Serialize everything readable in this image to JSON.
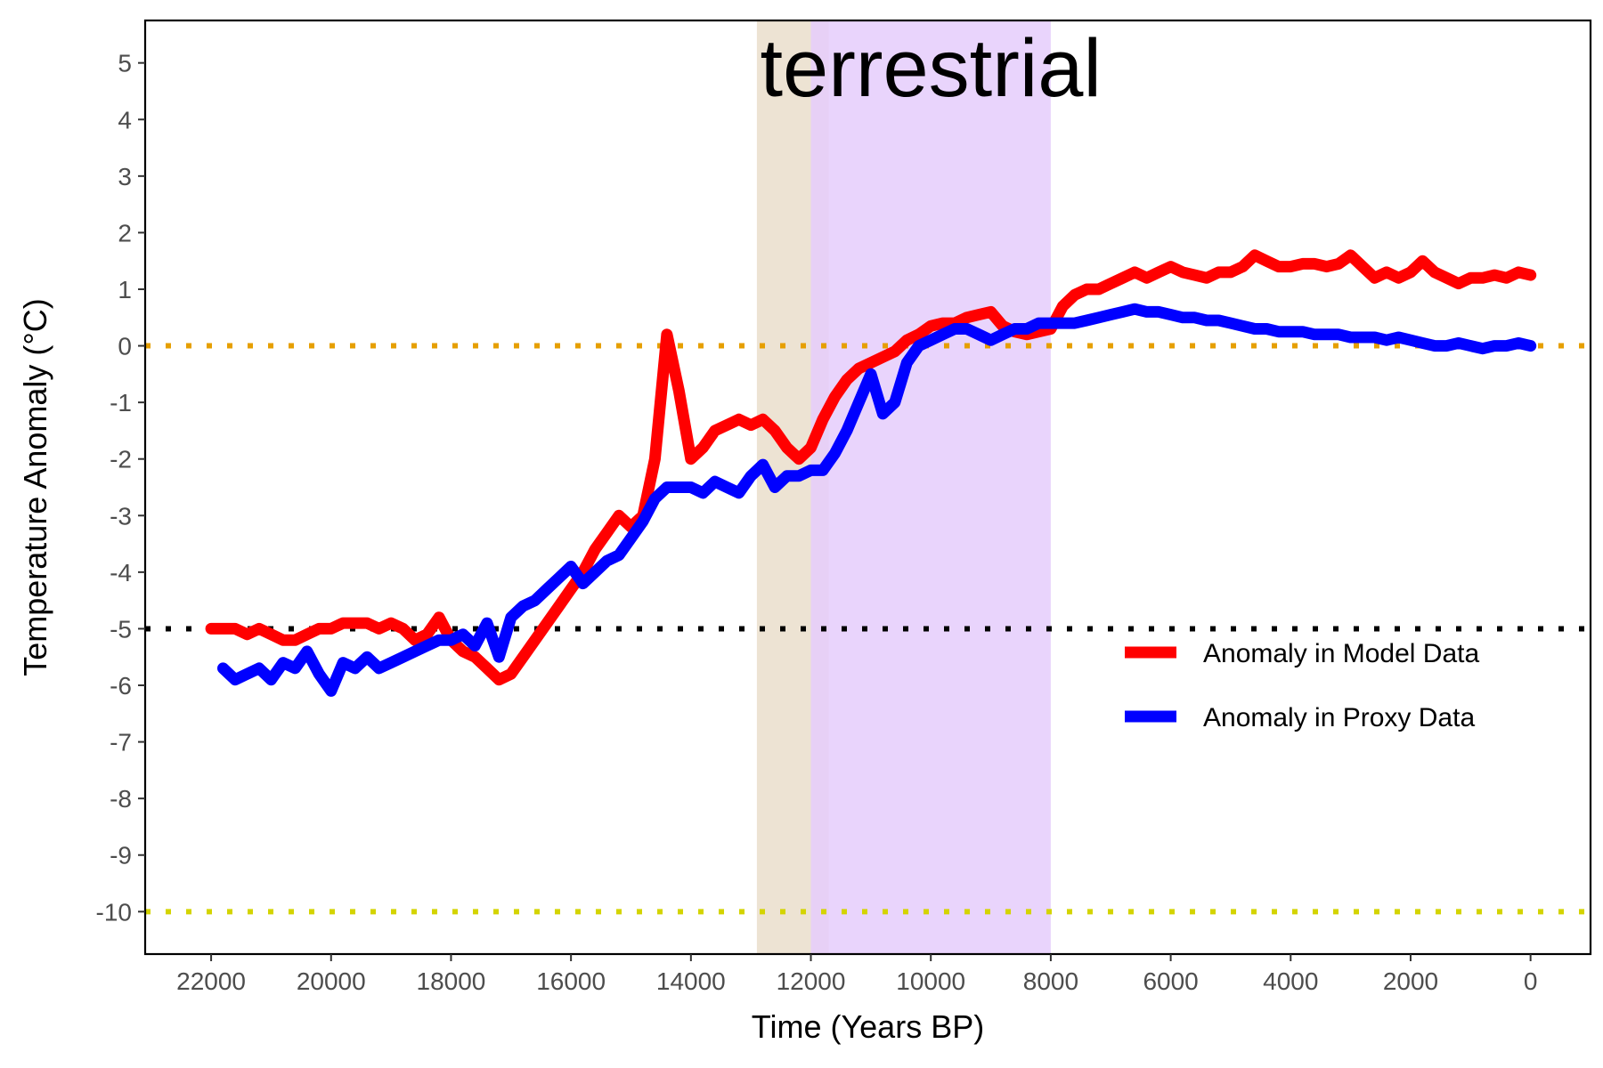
{
  "chart_data": {
    "type": "line",
    "title": "terrestrial",
    "xlabel": "Time (Years BP)",
    "ylabel": "Temperature Anomaly (°C)",
    "x_reversed": true,
    "xlim": [
      22000,
      0
    ],
    "ylim": [
      -10,
      5
    ],
    "x_ticks": [
      22000,
      20000,
      18000,
      16000,
      14000,
      12000,
      10000,
      8000,
      6000,
      4000,
      2000,
      0
    ],
    "y_ticks": [
      5,
      4,
      3,
      2,
      1,
      0,
      -1,
      -2,
      -3,
      -4,
      -5,
      -6,
      -7,
      -8,
      -9,
      -10
    ],
    "grid": false,
    "legend_position": "right",
    "shaded_bands": [
      {
        "x_start": 12900,
        "x_end": 11700,
        "color": "#ede3d3"
      },
      {
        "x_start": 12000,
        "x_end": 8000,
        "color": "#e5ccfb"
      }
    ],
    "reference_lines": [
      {
        "y": 0,
        "color": "#e69f00",
        "style": "dotted"
      },
      {
        "y": -5,
        "color": "#000000",
        "style": "dotted"
      },
      {
        "y": -10,
        "color": "#d4d400",
        "style": "dotted"
      }
    ],
    "series": [
      {
        "name": "Anomaly in Model Data",
        "color": "#ff0000",
        "x": [
          22000,
          21800,
          21600,
          21400,
          21200,
          21000,
          20800,
          20600,
          20400,
          20200,
          20000,
          19800,
          19600,
          19400,
          19200,
          19000,
          18800,
          18600,
          18400,
          18200,
          18000,
          17800,
          17600,
          17400,
          17200,
          17000,
          16800,
          16600,
          16400,
          16200,
          16000,
          15800,
          15600,
          15400,
          15200,
          15000,
          14800,
          14600,
          14400,
          14200,
          14000,
          13800,
          13600,
          13400,
          13200,
          13000,
          12800,
          12600,
          12400,
          12200,
          12000,
          11800,
          11600,
          11400,
          11200,
          11000,
          10800,
          10600,
          10400,
          10200,
          10000,
          9800,
          9600,
          9400,
          9200,
          9000,
          8800,
          8600,
          8400,
          8200,
          8000,
          7800,
          7600,
          7400,
          7200,
          7000,
          6800,
          6600,
          6400,
          6200,
          6000,
          5800,
          5600,
          5400,
          5200,
          5000,
          4800,
          4600,
          4400,
          4200,
          4000,
          3800,
          3600,
          3400,
          3200,
          3000,
          2800,
          2600,
          2400,
          2200,
          2000,
          1800,
          1600,
          1400,
          1200,
          1000,
          800,
          600,
          400,
          200,
          0
        ],
        "values": [
          -5.0,
          -5.0,
          -5.0,
          -5.1,
          -5.0,
          -5.1,
          -5.2,
          -5.2,
          -5.1,
          -5.0,
          -5.0,
          -4.9,
          -4.9,
          -4.9,
          -5.0,
          -4.9,
          -5.0,
          -5.2,
          -5.1,
          -4.8,
          -5.2,
          -5.4,
          -5.5,
          -5.7,
          -5.9,
          -5.8,
          -5.5,
          -5.2,
          -4.9,
          -4.6,
          -4.3,
          -4.0,
          -3.6,
          -3.3,
          -3.0,
          -3.2,
          -3.0,
          -2.0,
          0.2,
          -0.8,
          -2.0,
          -1.8,
          -1.5,
          -1.4,
          -1.3,
          -1.4,
          -1.3,
          -1.5,
          -1.8,
          -2.0,
          -1.8,
          -1.3,
          -0.9,
          -0.6,
          -0.4,
          -0.3,
          -0.2,
          -0.1,
          0.1,
          0.2,
          0.35,
          0.4,
          0.4,
          0.5,
          0.55,
          0.6,
          0.35,
          0.25,
          0.2,
          0.25,
          0.3,
          0.7,
          0.9,
          1.0,
          1.0,
          1.1,
          1.2,
          1.3,
          1.2,
          1.3,
          1.4,
          1.3,
          1.25,
          1.2,
          1.3,
          1.3,
          1.4,
          1.6,
          1.5,
          1.4,
          1.4,
          1.45,
          1.45,
          1.4,
          1.45,
          1.6,
          1.4,
          1.2,
          1.3,
          1.2,
          1.3,
          1.5,
          1.3,
          1.2,
          1.1,
          1.2,
          1.2,
          1.25,
          1.2,
          1.3,
          1.25
        ]
      },
      {
        "name": "Anomaly in Proxy Data",
        "color": "#0000ff",
        "x": [
          21800,
          21600,
          21400,
          21200,
          21000,
          20800,
          20600,
          20400,
          20200,
          20000,
          19800,
          19600,
          19400,
          19200,
          19000,
          18800,
          18600,
          18400,
          18200,
          18000,
          17800,
          17600,
          17400,
          17200,
          17000,
          16800,
          16600,
          16400,
          16200,
          16000,
          15800,
          15600,
          15400,
          15200,
          15000,
          14800,
          14600,
          14400,
          14200,
          14000,
          13800,
          13600,
          13400,
          13200,
          13000,
          12800,
          12600,
          12400,
          12200,
          12000,
          11800,
          11600,
          11400,
          11200,
          11000,
          10800,
          10600,
          10400,
          10200,
          10000,
          9800,
          9600,
          9400,
          9200,
          9000,
          8800,
          8600,
          8400,
          8200,
          8000,
          7800,
          7600,
          7400,
          7200,
          7000,
          6800,
          6600,
          6400,
          6200,
          6000,
          5800,
          5600,
          5400,
          5200,
          5000,
          4800,
          4600,
          4400,
          4200,
          4000,
          3800,
          3600,
          3400,
          3200,
          3000,
          2800,
          2600,
          2400,
          2200,
          2000,
          1800,
          1600,
          1400,
          1200,
          1000,
          800,
          600,
          400,
          200,
          0
        ],
        "values": [
          -5.7,
          -5.9,
          -5.8,
          -5.7,
          -5.9,
          -5.6,
          -5.7,
          -5.4,
          -5.8,
          -6.1,
          -5.6,
          -5.7,
          -5.5,
          -5.7,
          -5.6,
          -5.5,
          -5.4,
          -5.3,
          -5.2,
          -5.2,
          -5.1,
          -5.3,
          -4.9,
          -5.5,
          -4.8,
          -4.6,
          -4.5,
          -4.3,
          -4.1,
          -3.9,
          -4.2,
          -4.0,
          -3.8,
          -3.7,
          -3.4,
          -3.1,
          -2.7,
          -2.5,
          -2.5,
          -2.5,
          -2.6,
          -2.4,
          -2.5,
          -2.6,
          -2.3,
          -2.1,
          -2.5,
          -2.3,
          -2.3,
          -2.2,
          -2.2,
          -1.9,
          -1.5,
          -1.0,
          -0.5,
          -1.2,
          -1.0,
          -0.3,
          0.0,
          0.1,
          0.2,
          0.3,
          0.3,
          0.2,
          0.1,
          0.2,
          0.3,
          0.3,
          0.4,
          0.4,
          0.4,
          0.4,
          0.45,
          0.5,
          0.55,
          0.6,
          0.65,
          0.6,
          0.6,
          0.55,
          0.5,
          0.5,
          0.45,
          0.45,
          0.4,
          0.35,
          0.3,
          0.3,
          0.25,
          0.25,
          0.25,
          0.2,
          0.2,
          0.2,
          0.15,
          0.15,
          0.15,
          0.1,
          0.15,
          0.1,
          0.05,
          0.0,
          0.0,
          0.05,
          0.0,
          -0.05,
          0.0,
          0.0,
          0.05,
          0.0
        ]
      }
    ]
  }
}
